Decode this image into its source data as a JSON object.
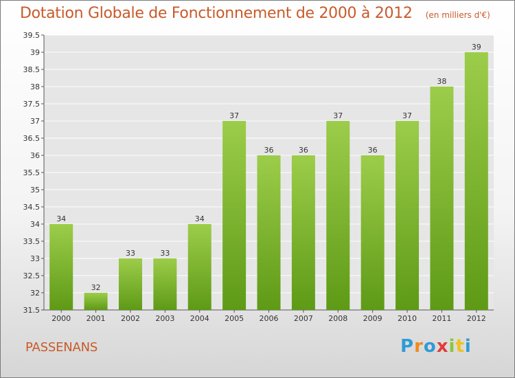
{
  "header": {
    "title": "Dotation Globale de Fonctionnement de 2000 à 2012",
    "unit": "(en milliers d'€)"
  },
  "footer": {
    "place": "PASSENANS",
    "brand": "Proxiti"
  },
  "colors": {
    "bar_top": "#9ccd4a",
    "bar_bottom": "#5e9a16",
    "title": "#c85a2a",
    "grid": "#ffffff"
  },
  "chart_data": {
    "type": "bar",
    "title": "Dotation Globale de Fonctionnement de 2000 à 2012",
    "subtitle": "(en milliers d'€)",
    "xlabel": "",
    "ylabel": "",
    "categories": [
      "2000",
      "2001",
      "2002",
      "2003",
      "2004",
      "2005",
      "2006",
      "2007",
      "2008",
      "2009",
      "2010",
      "2011",
      "2012"
    ],
    "values": [
      34,
      32,
      33,
      33,
      34,
      37,
      36,
      36,
      37,
      36,
      37,
      38,
      39
    ],
    "data_labels": [
      "34",
      "32",
      "33",
      "33",
      "34",
      "37",
      "36",
      "36",
      "37",
      "36",
      "37",
      "38",
      "39"
    ],
    "ylim": [
      31.5,
      39.5
    ],
    "yticks": [
      "31.5",
      "32",
      "32.5",
      "33",
      "33.5",
      "34",
      "34.5",
      "35",
      "35.5",
      "36",
      "36.5",
      "37",
      "37.5",
      "38",
      "38.5",
      "39",
      "39.5"
    ],
    "grid": true,
    "legend": "none"
  }
}
